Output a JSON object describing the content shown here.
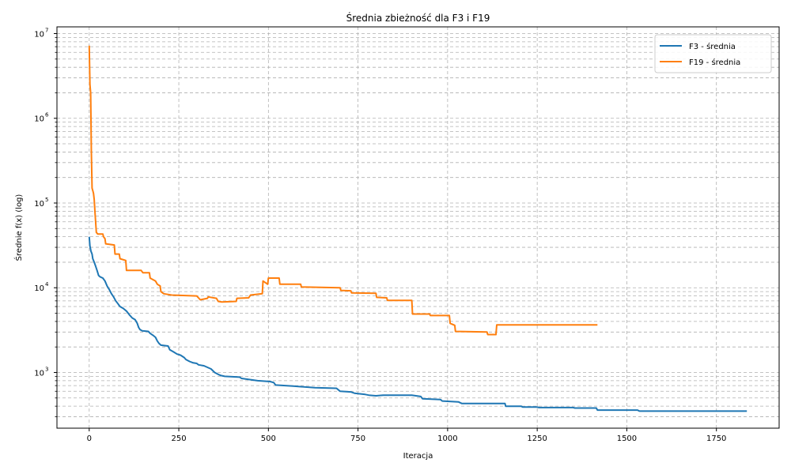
{
  "chart_data": {
    "type": "line",
    "title": "Średnia zbieżność dla F3 i F19",
    "xlabel": "Iteracja",
    "ylabel": "Średnie f(x) (log)",
    "yscale": "log",
    "xlim": [
      -90,
      1925
    ],
    "ylim": [
      220,
      12000000
    ],
    "xticks": [
      0,
      250,
      500,
      750,
      1000,
      1250,
      1500,
      1750
    ],
    "yticks_major": [
      1000,
      10000,
      100000,
      1000000,
      10000000
    ],
    "ytick_labels": [
      "10",
      "10",
      "10",
      "10",
      "10"
    ],
    "ytick_exponents": [
      "3",
      "4",
      "5",
      "6",
      "7"
    ],
    "grid": true,
    "legend_position": "top-right",
    "series": [
      {
        "name": "F3 - średnia",
        "color": "#1f77b4",
        "points": [
          [
            0,
            40000
          ],
          [
            2,
            31000
          ],
          [
            5,
            27000
          ],
          [
            8,
            25000
          ],
          [
            10,
            22000
          ],
          [
            14,
            20000
          ],
          [
            18,
            18000
          ],
          [
            22,
            16000
          ],
          [
            26,
            14000
          ],
          [
            30,
            13500
          ],
          [
            38,
            13000
          ],
          [
            44,
            12000
          ],
          [
            50,
            10500
          ],
          [
            56,
            9500
          ],
          [
            62,
            8500
          ],
          [
            68,
            7800
          ],
          [
            74,
            7000
          ],
          [
            80,
            6500
          ],
          [
            86,
            6000
          ],
          [
            95,
            5700
          ],
          [
            104,
            5300
          ],
          [
            112,
            4800
          ],
          [
            120,
            4400
          ],
          [
            128,
            4200
          ],
          [
            134,
            3800
          ],
          [
            138,
            3400
          ],
          [
            142,
            3200
          ],
          [
            148,
            3100
          ],
          [
            165,
            3050
          ],
          [
            170,
            2900
          ],
          [
            178,
            2750
          ],
          [
            185,
            2600
          ],
          [
            190,
            2350
          ],
          [
            195,
            2200
          ],
          [
            200,
            2100
          ],
          [
            220,
            2050
          ],
          [
            225,
            1850
          ],
          [
            235,
            1750
          ],
          [
            245,
            1650
          ],
          [
            255,
            1600
          ],
          [
            265,
            1500
          ],
          [
            270,
            1420
          ],
          [
            280,
            1350
          ],
          [
            290,
            1300
          ],
          [
            300,
            1280
          ],
          [
            305,
            1230
          ],
          [
            320,
            1200
          ],
          [
            330,
            1150
          ],
          [
            340,
            1100
          ],
          [
            350,
            1000
          ],
          [
            360,
            950
          ],
          [
            368,
            920
          ],
          [
            378,
            900
          ],
          [
            420,
            880
          ],
          [
            425,
            850
          ],
          [
            470,
            800
          ],
          [
            505,
            780
          ],
          [
            515,
            760
          ],
          [
            520,
            710
          ],
          [
            570,
            690
          ],
          [
            630,
            660
          ],
          [
            690,
            650
          ],
          [
            700,
            600
          ],
          [
            730,
            590
          ],
          [
            740,
            570
          ],
          [
            770,
            550
          ],
          [
            780,
            540
          ],
          [
            800,
            530
          ],
          [
            820,
            540
          ],
          [
            900,
            540
          ],
          [
            925,
            520
          ],
          [
            930,
            490
          ],
          [
            980,
            480
          ],
          [
            985,
            460
          ],
          [
            1030,
            450
          ],
          [
            1040,
            430
          ],
          [
            1130,
            430
          ],
          [
            1160,
            430
          ],
          [
            1162,
            400
          ],
          [
            1205,
            400
          ],
          [
            1210,
            390
          ],
          [
            1250,
            390
          ],
          [
            1255,
            385
          ],
          [
            1350,
            385
          ],
          [
            1355,
            380
          ],
          [
            1415,
            380
          ],
          [
            1418,
            360
          ],
          [
            1530,
            360
          ],
          [
            1535,
            350
          ],
          [
            1835,
            350
          ]
        ]
      },
      {
        "name": "F19 - średnia",
        "color": "#ff7f0e",
        "points": [
          [
            0,
            7200000
          ],
          [
            2,
            2500000
          ],
          [
            4,
            2000000
          ],
          [
            6,
            400000
          ],
          [
            8,
            150000
          ],
          [
            10,
            140000
          ],
          [
            12,
            130000
          ],
          [
            14,
            110000
          ],
          [
            16,
            80000
          ],
          [
            18,
            60000
          ],
          [
            20,
            45000
          ],
          [
            24,
            43000
          ],
          [
            38,
            43000
          ],
          [
            40,
            40000
          ],
          [
            44,
            38000
          ],
          [
            46,
            33000
          ],
          [
            70,
            32000
          ],
          [
            72,
            25000
          ],
          [
            84,
            25000
          ],
          [
            86,
            22000
          ],
          [
            102,
            21000
          ],
          [
            104,
            16000
          ],
          [
            145,
            16000
          ],
          [
            150,
            15000
          ],
          [
            168,
            15000
          ],
          [
            170,
            13000
          ],
          [
            185,
            12000
          ],
          [
            190,
            11000
          ],
          [
            198,
            10500
          ],
          [
            200,
            9000
          ],
          [
            208,
            8500
          ],
          [
            230,
            8200
          ],
          [
            300,
            8000
          ],
          [
            310,
            7200
          ],
          [
            330,
            7500
          ],
          [
            332,
            7800
          ],
          [
            355,
            7500
          ],
          [
            360,
            6900
          ],
          [
            370,
            6800
          ],
          [
            410,
            6900
          ],
          [
            412,
            7500
          ],
          [
            445,
            7600
          ],
          [
            450,
            8200
          ],
          [
            483,
            8500
          ],
          [
            485,
            12000
          ],
          [
            498,
            11000
          ],
          [
            500,
            13000
          ],
          [
            530,
            13000
          ],
          [
            532,
            11000
          ],
          [
            590,
            11000
          ],
          [
            592,
            10200
          ],
          [
            700,
            10000
          ],
          [
            702,
            9300
          ],
          [
            730,
            9200
          ],
          [
            732,
            8700
          ],
          [
            800,
            8600
          ],
          [
            802,
            7700
          ],
          [
            830,
            7600
          ],
          [
            832,
            7100
          ],
          [
            900,
            7100
          ],
          [
            902,
            4900
          ],
          [
            950,
            4900
          ],
          [
            952,
            4700
          ],
          [
            1005,
            4700
          ],
          [
            1007,
            3800
          ],
          [
            1020,
            3600
          ],
          [
            1022,
            3050
          ],
          [
            1110,
            3000
          ],
          [
            1112,
            2800
          ],
          [
            1135,
            2800
          ],
          [
            1137,
            3650
          ],
          [
            1418,
            3650
          ]
        ]
      }
    ]
  }
}
